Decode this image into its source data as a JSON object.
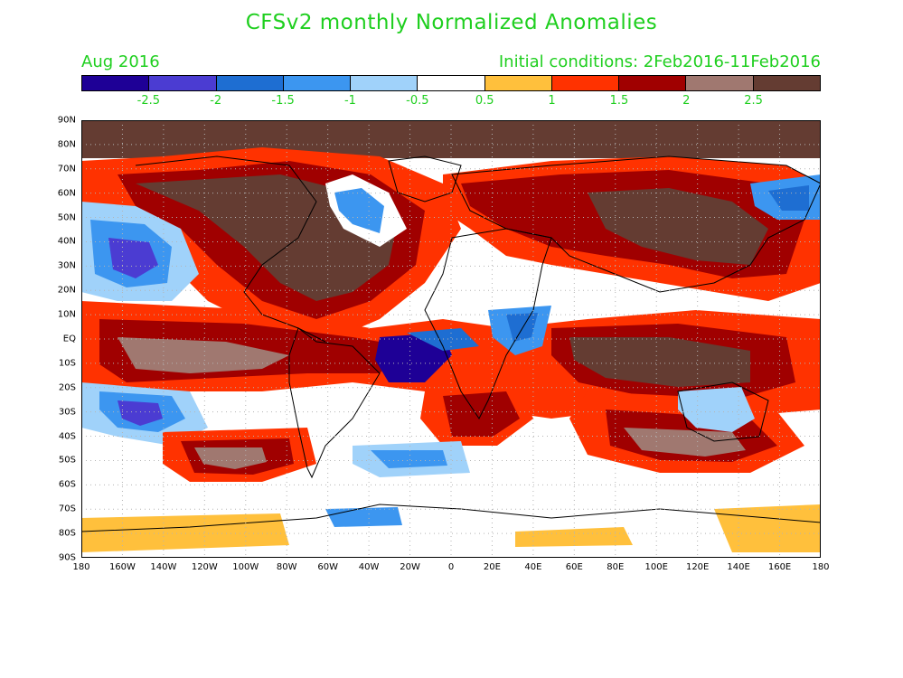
{
  "title": "CFSv2 monthly Normalized Anomalies",
  "period": "Aug 2016",
  "initial_conditions": "Initial conditions: 2Feb2016-11Feb2016",
  "colorbar": {
    "colors": [
      "#1e0096",
      "#4b3cd2",
      "#1e6ed2",
      "#3c96f0",
      "#a0d2fa",
      "#ffffff",
      "#ffc03c",
      "#ff3200",
      "#a00000",
      "#a07870",
      "#643c32"
    ],
    "labels": [
      "-2.5",
      "-2",
      "-1.5",
      "-1",
      "-0.5",
      "0.5",
      "1",
      "1.5",
      "2",
      "2.5"
    ]
  },
  "axes": {
    "lat_labels": [
      "90N",
      "80N",
      "70N",
      "60N",
      "50N",
      "40N",
      "30N",
      "20N",
      "10N",
      "EQ",
      "10S",
      "20S",
      "30S",
      "40S",
      "50S",
      "60S",
      "70S",
      "80S",
      "90S"
    ],
    "lon_labels": [
      "180",
      "160W",
      "140W",
      "120W",
      "100W",
      "80W",
      "60W",
      "40W",
      "20W",
      "0",
      "20E",
      "40E",
      "60E",
      "80E",
      "100E",
      "120E",
      "140E",
      "160E",
      "180"
    ]
  },
  "map": {
    "projection": "cylindrical equidistant",
    "extent": {
      "lon": [
        -180,
        180
      ],
      "lat": [
        -90,
        90
      ]
    },
    "field": "normalized anomaly",
    "grid": "dotted"
  }
}
